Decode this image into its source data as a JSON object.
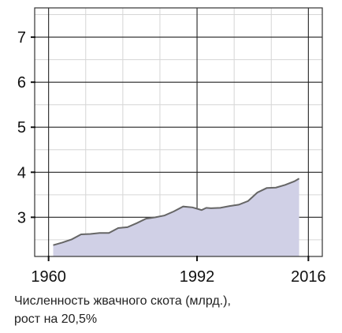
{
  "chart_data": {
    "type": "area",
    "title": "",
    "xlabel": "",
    "ylabel": "",
    "xlim": [
      1957,
      2019
    ],
    "ylim": [
      2.13,
      7.65
    ],
    "x_ticks": [
      1960,
      1992,
      2016
    ],
    "y_ticks": [
      3,
      4,
      5,
      6,
      7
    ],
    "x_tick_labels": [
      "1960",
      "1992",
      "2016"
    ],
    "y_tick_labels": [
      "3",
      "4",
      "5",
      "6",
      "7"
    ],
    "grid": true,
    "fill_color": "#d0d0e6",
    "line_color": "#666666",
    "x": [
      1961,
      1963,
      1965,
      1967,
      1969,
      1971,
      1973,
      1975,
      1977,
      1979,
      1981,
      1983,
      1985,
      1987,
      1989,
      1991,
      1993,
      1994,
      1995,
      1997,
      1999,
      2001,
      2003,
      2005,
      2007,
      2009,
      2011,
      2013,
      2014
    ],
    "values": [
      2.38,
      2.44,
      2.51,
      2.62,
      2.63,
      2.65,
      2.65,
      2.76,
      2.78,
      2.87,
      2.97,
      3.0,
      3.04,
      3.13,
      3.24,
      3.22,
      3.16,
      3.21,
      3.2,
      3.21,
      3.25,
      3.28,
      3.36,
      3.55,
      3.65,
      3.66,
      3.72,
      3.8,
      3.86
    ]
  },
  "caption": {
    "line1": "Численность жвачного скота (млрд.),",
    "line2": "рост на 20,5%"
  }
}
